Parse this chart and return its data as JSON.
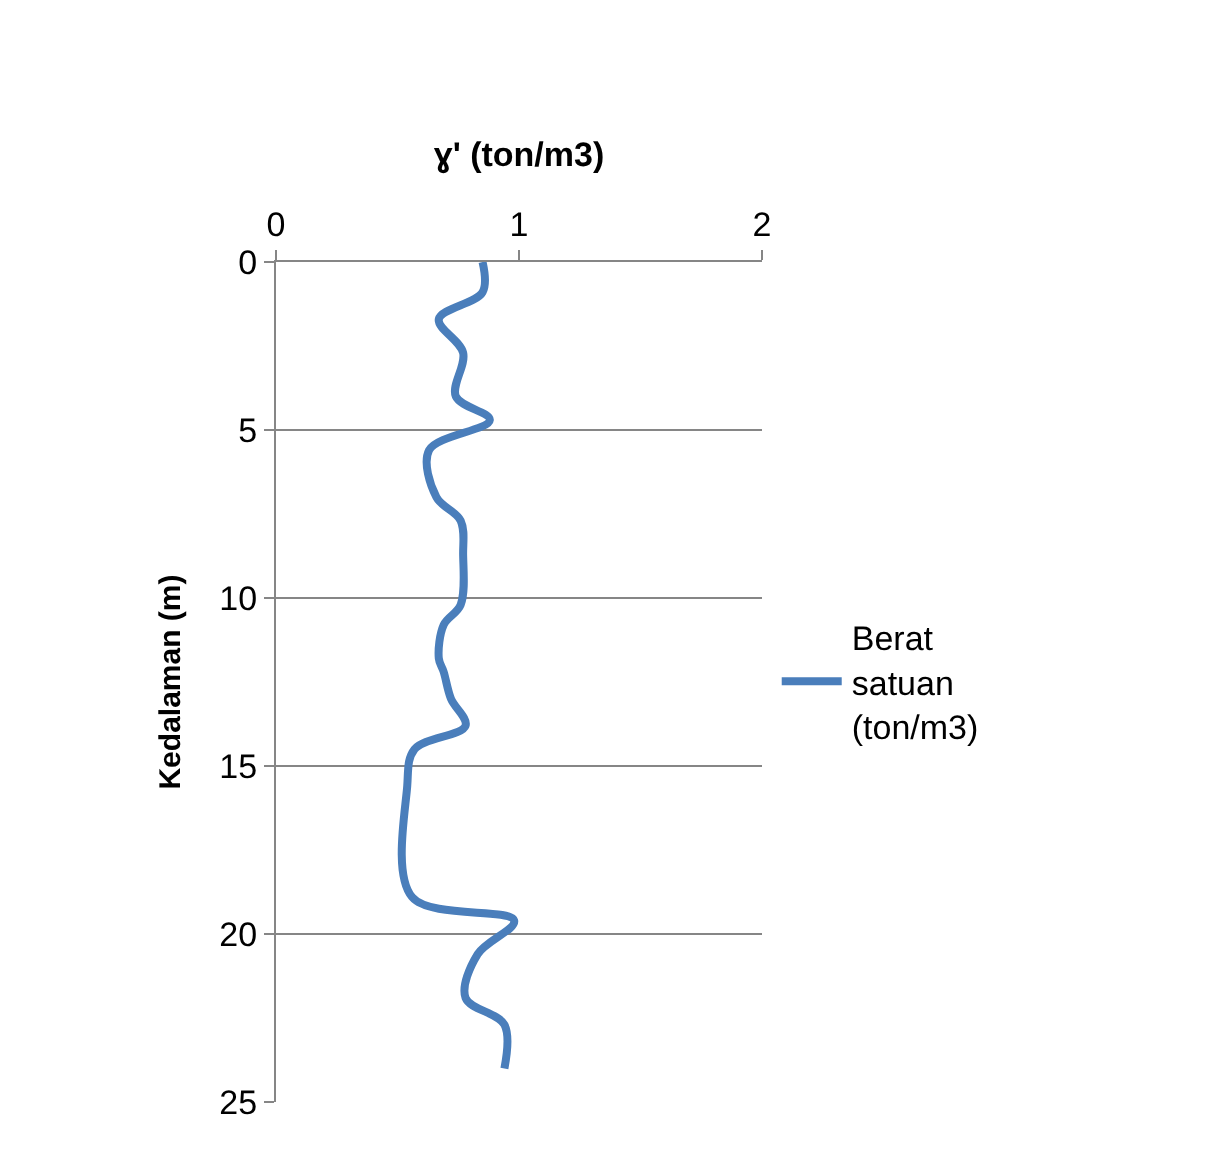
{
  "chart_data": {
    "type": "line",
    "xlabel": "ɣ' (ton/m3)",
    "ylabel": "Kedalaman (m)",
    "xlim": [
      0,
      2
    ],
    "xticks": [
      0,
      1,
      2
    ],
    "ylim": [
      25,
      0
    ],
    "yticks": [
      0,
      5,
      10,
      15,
      20,
      25
    ],
    "grid": "y",
    "legend": "right",
    "marker": "none",
    "line_style": "solid",
    "series": [
      {
        "name": "Berat satuan (ton/m3)",
        "color": "#4a7ebb",
        "x": [
          0.85,
          0.85,
          0.67,
          0.77,
          0.74,
          0.88,
          0.63,
          0.66,
          0.76,
          0.77,
          0.76,
          0.69,
          0.67,
          0.69,
          0.72,
          0.78,
          0.57,
          0.54,
          0.56,
          0.98,
          0.83,
          0.78,
          0.94,
          0.94
        ],
        "values": [
          0,
          0.9,
          1.7,
          2.7,
          4.0,
          4.7,
          5.6,
          7.0,
          7.7,
          8.7,
          10.2,
          10.8,
          11.8,
          12.2,
          13.0,
          13.8,
          14.5,
          15.6,
          18.9,
          19.6,
          20.6,
          21.9,
          22.7,
          24.0
        ]
      }
    ]
  }
}
